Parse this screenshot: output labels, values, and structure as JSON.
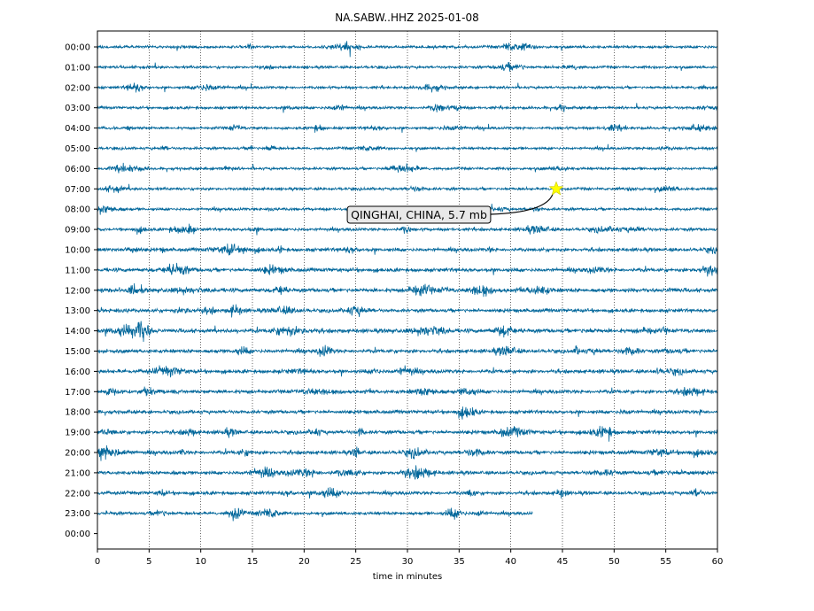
{
  "chart_data": {
    "type": "line",
    "title": "NA.SABW..HHZ 2025-01-08",
    "xlabel": "time in minutes",
    "ylabel": "",
    "xlim": [
      0,
      60
    ],
    "x_ticks": [
      0,
      5,
      10,
      15,
      20,
      25,
      30,
      35,
      40,
      45,
      50,
      55,
      60
    ],
    "y_tick_labels": [
      "00:00",
      "01:00",
      "02:00",
      "03:00",
      "04:00",
      "05:00",
      "06:00",
      "07:00",
      "08:00",
      "09:00",
      "10:00",
      "11:00",
      "12:00",
      "13:00",
      "14:00",
      "15:00",
      "16:00",
      "17:00",
      "18:00",
      "19:00",
      "20:00",
      "21:00",
      "22:00",
      "23:00",
      "00:00"
    ],
    "grid": "vertical dotted lines at each x tick",
    "trace_color": "#00669a",
    "series_end_minutes": [
      60,
      60,
      60,
      60,
      60,
      60,
      60,
      60,
      60,
      60,
      60,
      60,
      60,
      60,
      60,
      60,
      60,
      60,
      60,
      60,
      60,
      60,
      60,
      42.1
    ],
    "relative_noise_level": [
      0.6,
      0.55,
      0.55,
      0.6,
      0.55,
      0.55,
      0.55,
      0.6,
      0.6,
      0.7,
      0.9,
      1.0,
      1.1,
      0.9,
      1.1,
      1.0,
      1.0,
      1.0,
      0.9,
      1.0,
      1.0,
      0.9,
      0.9,
      0.7
    ],
    "event": {
      "label": "QINGHAI, CHINA, 5.7 mb",
      "hour": "07:00",
      "minute": 44.4,
      "marker": "star",
      "marker_color": "#ffff00"
    }
  }
}
